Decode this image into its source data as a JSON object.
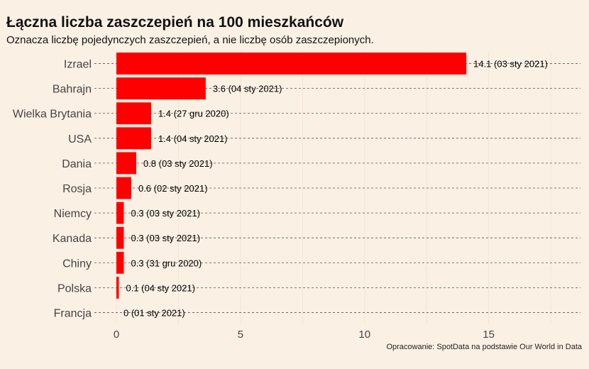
{
  "chart_data": {
    "type": "bar",
    "orientation": "horizontal",
    "title": "Łączna liczba zaszczepień na 100 mieszkańców",
    "subtitle": "Oznacza liczbę pojedynczych zaszczepień, a nie liczbę osób zaszczepionych.",
    "source": "Opracowanie: SpotData na podstawie Our World in Data",
    "categories": [
      "Izrael",
      "Bahrajn",
      "Wielka Brytania",
      "USA",
      "Dania",
      "Rosja",
      "Niemcy",
      "Kanada",
      "Chiny",
      "Polska",
      "Francja"
    ],
    "values": [
      14.1,
      3.6,
      1.4,
      1.4,
      0.8,
      0.6,
      0.3,
      0.3,
      0.3,
      0.1,
      0
    ],
    "data_labels": [
      "14.1 (03 sty 2021)",
      "3.6 (04 sty 2021)",
      "1.4 (27 gru 2020)",
      "1.4 (04 sty 2021)",
      "0.8 (03 sty 2021)",
      "0.6 (02 sty 2021)",
      "0.3 (03 sty 2021)",
      "0.3 (03 sty 2021)",
      "0.3 (31 gru 2020)",
      "0.1 (04 sty 2021)",
      "0 (01 sty 2021)"
    ],
    "xticks": [
      0,
      5,
      10,
      15
    ],
    "xlim": [
      0,
      18.7
    ],
    "xlabel": "",
    "ylabel": "",
    "grid": true,
    "bar_color": "#ff0000",
    "background": "#fbf0e4"
  }
}
